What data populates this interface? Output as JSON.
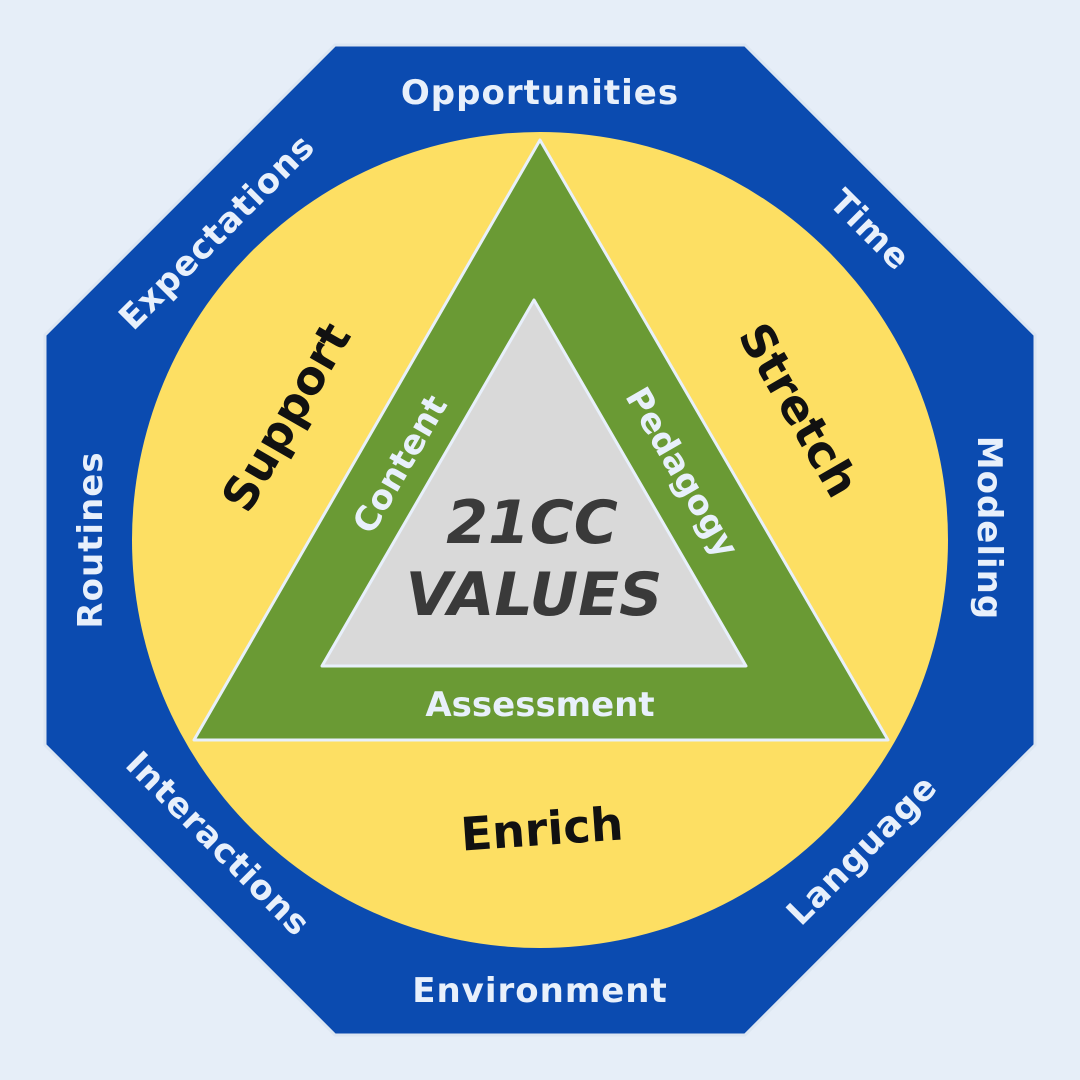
{
  "octagon": {
    "labels": {
      "top": "Opportunities",
      "top_right": "Time",
      "right": "Modeling",
      "bottom_right": "Language",
      "bottom": "Environment",
      "bottom_left": "Interactions",
      "left": "Routines",
      "top_left": "Expectations"
    }
  },
  "ring": {
    "left": "Support",
    "right": "Stretch",
    "bottom": "Enrich"
  },
  "triangle": {
    "left": "Content",
    "right": "Pedagogy",
    "bottom": "Assessment"
  },
  "core": {
    "line1": "21CC",
    "line2": "VALUES"
  },
  "colors": {
    "background": "#e6eef8",
    "octagon": "#0b4bb0",
    "ring": "#fddf63",
    "triangle": "#6a9a34",
    "core": "#d9d9d9",
    "outline": "#dce6f2"
  }
}
